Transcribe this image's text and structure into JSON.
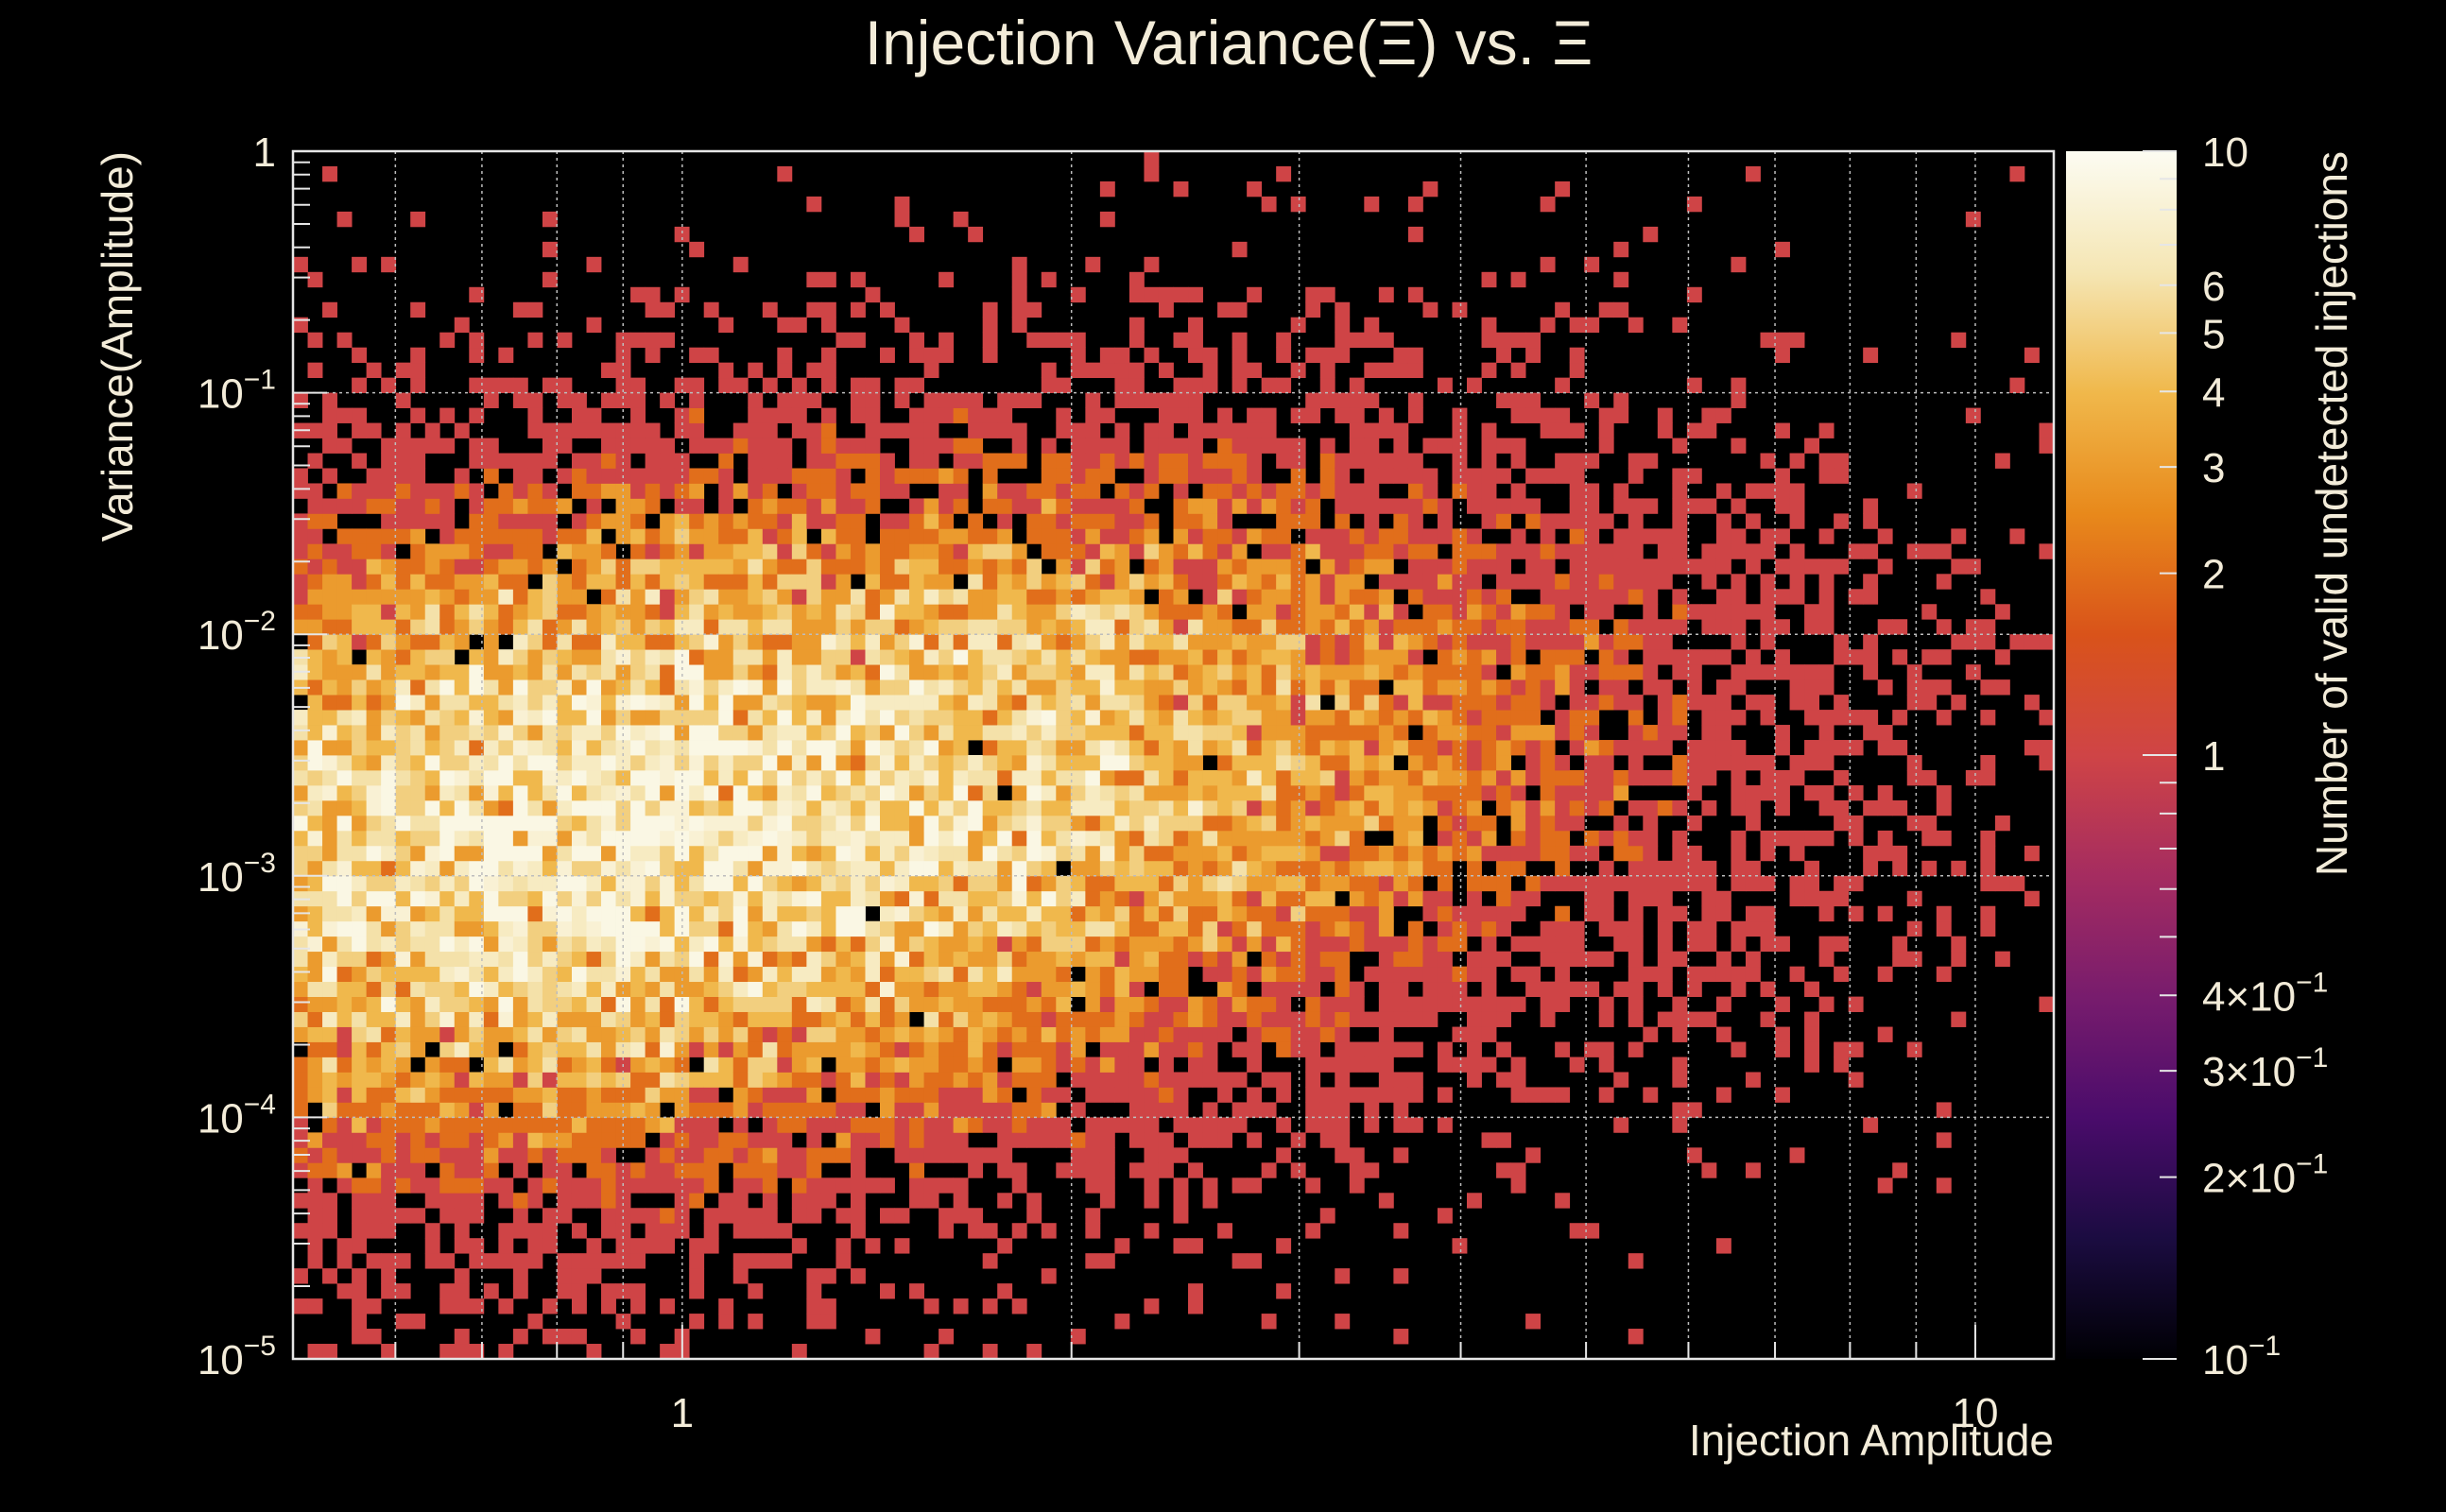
{
  "chart_data": {
    "type": "heatmap",
    "title": "Injection Variance(Ξ) vs. Ξ",
    "xlabel": "Injection Amplitude",
    "ylabel": "Variance(Amplitude)",
    "colorbar_label": "Number of valid undetected injections",
    "x_scale": "log",
    "y_scale": "log",
    "z_scale": "log",
    "xlim": [
      0.5,
      11.5
    ],
    "ylim": [
      1e-05,
      1
    ],
    "zlim": [
      0.1,
      10
    ],
    "x_ticks": [
      {
        "value": 1,
        "label": "1"
      },
      {
        "value": 10,
        "label": "10"
      }
    ],
    "y_ticks": [
      {
        "value": 1,
        "mantissa": "1",
        "exponent": ""
      },
      {
        "value": 0.1,
        "mantissa": "10",
        "exponent": "−1"
      },
      {
        "value": 0.01,
        "mantissa": "10",
        "exponent": "−2"
      },
      {
        "value": 0.001,
        "mantissa": "10",
        "exponent": "−3"
      },
      {
        "value": 0.0001,
        "mantissa": "10",
        "exponent": "−4"
      },
      {
        "value": 1e-05,
        "mantissa": "10",
        "exponent": "−5"
      }
    ],
    "z_ticks": [
      {
        "value": 10,
        "mantissa": "10",
        "exponent": ""
      },
      {
        "value": 6,
        "mantissa": "6",
        "exponent": ""
      },
      {
        "value": 5,
        "mantissa": "5",
        "exponent": ""
      },
      {
        "value": 4,
        "mantissa": "4",
        "exponent": ""
      },
      {
        "value": 3,
        "mantissa": "3",
        "exponent": ""
      },
      {
        "value": 2,
        "mantissa": "2",
        "exponent": ""
      },
      {
        "value": 1,
        "mantissa": "1",
        "exponent": ""
      },
      {
        "value": 0.4,
        "mantissa": "4×10",
        "exponent": "−1"
      },
      {
        "value": 0.3,
        "mantissa": "3×10",
        "exponent": "−1"
      },
      {
        "value": 0.2,
        "mantissa": "2×10",
        "exponent": "−1"
      },
      {
        "value": 0.1,
        "mantissa": "10",
        "exponent": "−1"
      }
    ],
    "grid": true,
    "colormap": [
      "#000004",
      "#1b0c41",
      "#4a0c6b",
      "#781c6d",
      "#a52c60",
      "#cf4446",
      "#d9531a",
      "#e8891b",
      "#f0b84b",
      "#f5e6b4",
      "#fcfcf2"
    ],
    "bins": {
      "x_count": 120,
      "y_count": 80,
      "x_min": 0.5,
      "x_max": 11.5,
      "y_min": 1e-05,
      "y_max": 1
    },
    "density_model": {
      "components": [
        {
          "center_amplitude": 0.6,
          "center_variance": 0.001,
          "peak_count": 4.0
        },
        {
          "center_amplitude": 1.0,
          "center_variance": 0.0015,
          "peak_count": 3.0
        },
        {
          "center_amplitude": 1.6,
          "center_variance": 0.004,
          "peak_count": 2.0
        },
        {
          "center_amplitude": 3.0,
          "center_variance": 0.005,
          "peak_count": 1.3
        }
      ],
      "seed": 7
    }
  }
}
